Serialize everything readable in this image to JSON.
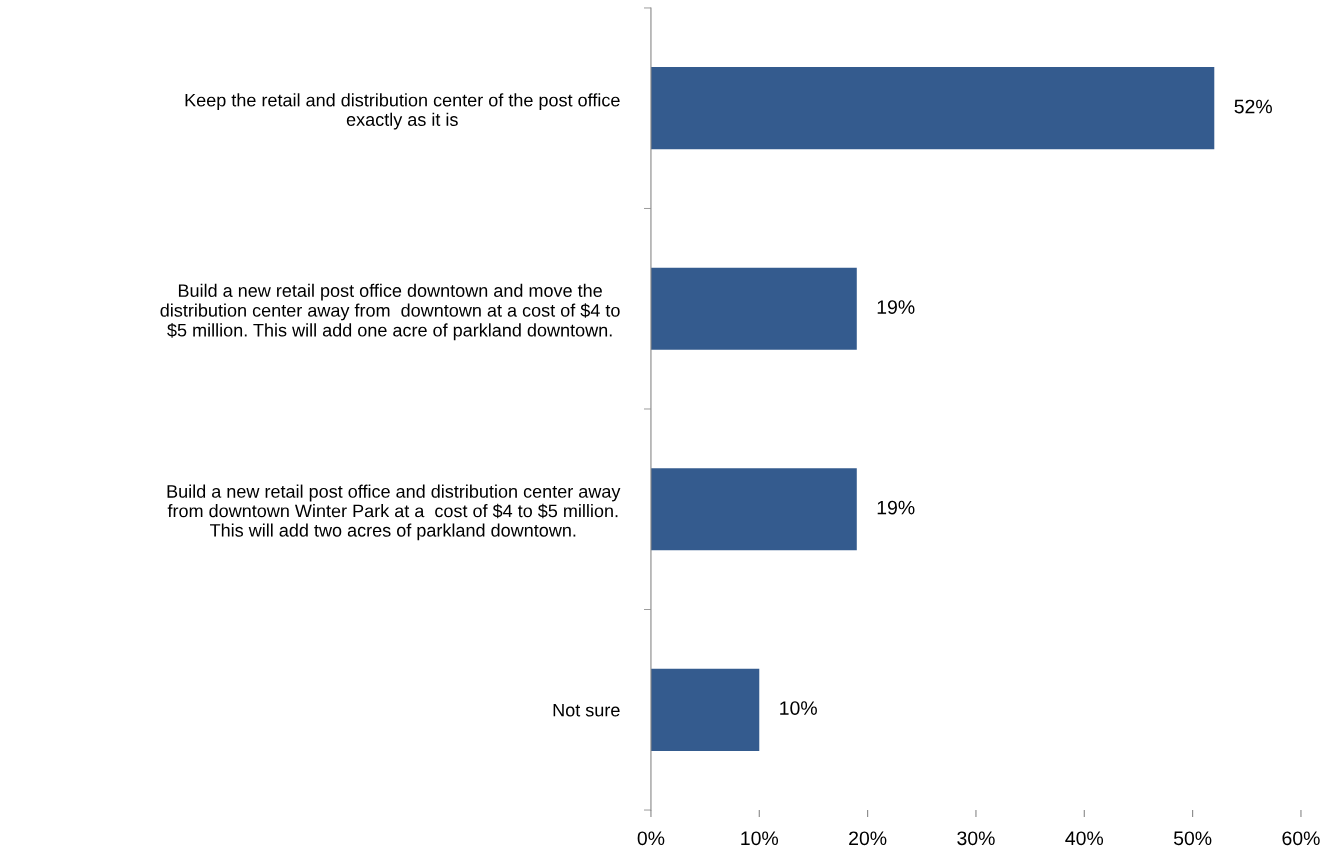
{
  "chart_data": {
    "type": "bar",
    "orientation": "horizontal",
    "categories": [
      "Keep the retail and distribution center of the post office\nexactly as it is",
      "Build a new retail post office downtown and move the\ndistribution center away from  downtown at a cost of $4 to\n$5 million. This will add one acre of parkland downtown.",
      "Build a new retail post office and distribution center away\nfrom downtown Winter Park at a  cost of $4 to $5 million.\nThis will add two acres of parkland downtown.",
      "Not sure"
    ],
    "values": [
      52,
      19,
      19,
      10
    ],
    "value_labels": [
      "52%",
      "19%",
      "19%",
      "10%"
    ],
    "color": "#345b8e",
    "xlim": [
      0,
      60
    ],
    "xticks": [
      {
        "value": 0,
        "label": "0%"
      },
      {
        "value": 10,
        "label": "10%"
      },
      {
        "value": 20,
        "label": "20%"
      },
      {
        "value": 30,
        "label": "30%"
      },
      {
        "value": 40,
        "label": "40%"
      },
      {
        "value": 50,
        "label": "50%"
      },
      {
        "value": 60,
        "label": "60%"
      }
    ],
    "grid": false,
    "legend": false
  }
}
